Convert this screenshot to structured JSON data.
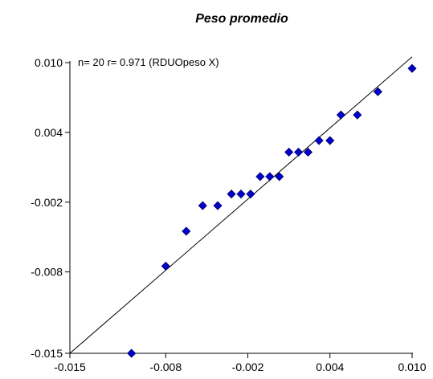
{
  "chart_data": {
    "type": "scatter",
    "title": "Peso promedio",
    "annotation": "n= 20 r= 0.971 (RDUOpeso X)",
    "xlabel": "",
    "ylabel": "",
    "xlim": [
      -0.015,
      0.01
    ],
    "ylim": [
      -0.015,
      0.01
    ],
    "x_ticks": [
      -0.015,
      -0.008,
      -0.002,
      0.004,
      0.01
    ],
    "x_tick_labels": [
      "-0.015",
      "-0.008",
      "-0.002",
      "0.004",
      "0.010"
    ],
    "y_ticks": [
      -0.015,
      -0.008,
      -0.002,
      0.004,
      0.01
    ],
    "y_tick_labels": [
      "-0.015",
      "-0.008",
      "-0.002",
      "0.004",
      "0.010"
    ],
    "grid": false,
    "points": [
      {
        "x": -0.0105,
        "y": -0.015
      },
      {
        "x": -0.008,
        "y": -0.0075
      },
      {
        "x": -0.0065,
        "y": -0.0045
      },
      {
        "x": -0.0053,
        "y": -0.0023
      },
      {
        "x": -0.0042,
        "y": -0.0023
      },
      {
        "x": -0.0032,
        "y": -0.0013
      },
      {
        "x": -0.0025,
        "y": -0.0013
      },
      {
        "x": -0.0018,
        "y": -0.0013
      },
      {
        "x": -0.0011,
        "y": 0.0002
      },
      {
        "x": -0.0004,
        "y": 0.0002
      },
      {
        "x": 0.0003,
        "y": 0.0002
      },
      {
        "x": 0.001,
        "y": 0.0023
      },
      {
        "x": 0.0017,
        "y": 0.0023
      },
      {
        "x": 0.0024,
        "y": 0.0023
      },
      {
        "x": 0.0032,
        "y": 0.0033
      },
      {
        "x": 0.004,
        "y": 0.0033
      },
      {
        "x": 0.0048,
        "y": 0.0055
      },
      {
        "x": 0.006,
        "y": 0.0055
      },
      {
        "x": 0.0075,
        "y": 0.0075
      },
      {
        "x": 0.01,
        "y": 0.0095
      }
    ],
    "regression_line": {
      "x": [
        -0.015,
        0.01
      ],
      "y": [
        -0.015,
        0.0105
      ]
    },
    "colors": {
      "point": "#0000cc",
      "point_edge": "#000066",
      "line": "#000000",
      "axis": "#000000"
    }
  }
}
